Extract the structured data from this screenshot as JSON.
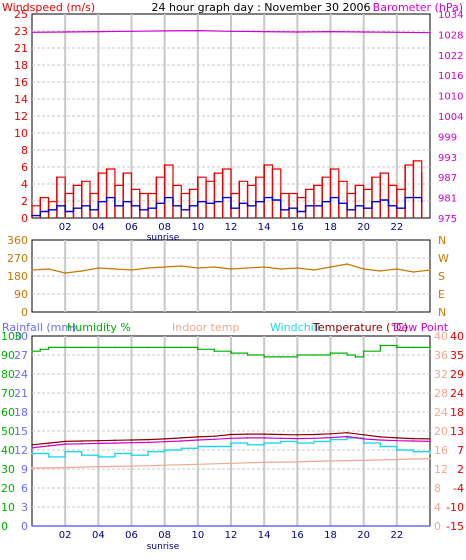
{
  "colors": {
    "windspeed": "#e80000",
    "gust": "#e80000",
    "wind_avg": "#0000c8",
    "barometer": "#d000d0",
    "direction": "#c87800",
    "rainfall": "#6a6aff",
    "humidity": "#00b000",
    "indoor": "#f0a890",
    "windchill": "#20d8e8",
    "temperature": "#8b0000",
    "dewpoint": "#d000d0",
    "left_temp_scale": "#f0a890",
    "grid": "#c8c8c8",
    "axis": "#000000"
  },
  "chart_data": [
    {
      "type": "line",
      "panel": "wind-barometer",
      "title": "24 hour graph day : November 30 2006",
      "left_axis_label": "Windspeed (m/s)",
      "right_axis_label": "Barometer (hPa)",
      "left_ticks": [
        "25",
        "23",
        "21",
        "18",
        "16",
        "14",
        "12",
        "10",
        "8",
        "6",
        "4",
        "2",
        "0"
      ],
      "left_range": [
        0,
        25
      ],
      "right_ticks": [
        "1034",
        "1028",
        "1022",
        "1016",
        "1010",
        "1004",
        "999",
        "993",
        "987",
        "981",
        "975"
      ],
      "right_range": [
        975,
        1034
      ],
      "x_ticks": [
        "02",
        "04",
        "06",
        "08",
        "10",
        "12",
        "14",
        "16",
        "18",
        "20",
        "22"
      ],
      "x_range_hours": [
        0,
        24
      ],
      "sunrise_label": "sunrise",
      "sunrise_hour": 7.9,
      "grid": true,
      "series": [
        {
          "key": "gust",
          "x": [
            0,
            0.5,
            1,
            1.5,
            2,
            2.5,
            3,
            3.5,
            4,
            4.5,
            5,
            5.5,
            6,
            6.5,
            7,
            7.5,
            8,
            8.5,
            9,
            9.5,
            10,
            10.5,
            11,
            11.5,
            12,
            12.5,
            13,
            13.5,
            14,
            14.5,
            15,
            15.5,
            16,
            16.5,
            17,
            17.5,
            18,
            18.5,
            19,
            19.5,
            20,
            20.5,
            21,
            21.5,
            22,
            22.5,
            23,
            23.5
          ],
          "y": [
            1.5,
            2.5,
            2.0,
            5.0,
            3.0,
            4.0,
            4.5,
            3.0,
            5.5,
            6.0,
            4.0,
            5.5,
            3.5,
            3.0,
            3.0,
            5.0,
            6.5,
            4.0,
            3.0,
            3.5,
            5.0,
            4.5,
            5.5,
            6.0,
            3.0,
            4.5,
            4.0,
            5.0,
            6.5,
            6.0,
            3.0,
            3.0,
            2.5,
            3.5,
            4.0,
            5.0,
            6.0,
            4.5,
            3.0,
            4.0,
            3.5,
            5.0,
            5.5,
            4.0,
            3.5,
            6.5,
            7.0,
            5.5
          ]
        },
        {
          "key": "wind_avg",
          "x": [
            0,
            0.5,
            1,
            1.5,
            2,
            2.5,
            3,
            3.5,
            4,
            4.5,
            5,
            5.5,
            6,
            6.5,
            7,
            7.5,
            8,
            8.5,
            9,
            9.5,
            10,
            10.5,
            11,
            11.5,
            12,
            12.5,
            13,
            13.5,
            14,
            14.5,
            15,
            15.5,
            16,
            16.5,
            17,
            17.5,
            18,
            18.5,
            19,
            19.5,
            20,
            20.5,
            21,
            21.5,
            22,
            22.5,
            23,
            23.5
          ],
          "y": [
            0.3,
            0.8,
            1.0,
            1.5,
            0.8,
            1.2,
            1.5,
            1.0,
            2.0,
            2.5,
            1.5,
            2.0,
            1.5,
            1.0,
            1.2,
            1.8,
            2.5,
            1.5,
            1.0,
            1.5,
            2.0,
            1.8,
            2.0,
            2.5,
            1.2,
            1.8,
            1.5,
            2.0,
            2.5,
            2.2,
            1.0,
            1.2,
            0.8,
            1.5,
            1.5,
            2.0,
            2.5,
            1.8,
            1.0,
            1.5,
            1.2,
            2.0,
            2.2,
            1.5,
            1.2,
            2.5,
            2.5,
            2.0
          ]
        },
        {
          "key": "barometer",
          "x": [
            0,
            2,
            4,
            6,
            8,
            10,
            12,
            14,
            16,
            18,
            20,
            22,
            24
          ],
          "y": [
            1028.7,
            1028.8,
            1028.9,
            1029.0,
            1029.1,
            1029.2,
            1029.0,
            1028.9,
            1028.8,
            1028.9,
            1028.8,
            1028.7,
            1028.6
          ]
        }
      ]
    },
    {
      "type": "line",
      "panel": "wind-direction",
      "left_ticks": [
        "360",
        "270",
        "180",
        "90",
        "0"
      ],
      "left_range": [
        0,
        360
      ],
      "right_ticks": [
        "N",
        "W",
        "S",
        "E",
        "N"
      ],
      "x_range_hours": [
        0,
        24
      ],
      "grid": true,
      "series": [
        {
          "key": "direction",
          "x": [
            0,
            1,
            2,
            3,
            4,
            5,
            6,
            7,
            8,
            9,
            10,
            11,
            12,
            13,
            14,
            15,
            16,
            17,
            18,
            19,
            20,
            21,
            22,
            23,
            24
          ],
          "y": [
            210,
            215,
            195,
            205,
            220,
            215,
            210,
            220,
            225,
            230,
            220,
            225,
            215,
            220,
            225,
            215,
            220,
            210,
            225,
            240,
            215,
            205,
            215,
            200,
            210
          ]
        }
      ]
    },
    {
      "type": "line",
      "panel": "temperature-humidity",
      "legend": [
        "Rainfall (mm)",
        "Humidity %",
        "Indoor temp",
        "Windchill",
        "Temperature (°C)",
        "Dew Point"
      ],
      "left_outer_ticks": [
        "100",
        "90",
        "80",
        "70",
        "60",
        "50",
        "40",
        "30",
        "20",
        "10",
        "0"
      ],
      "left_inner_ticks": [
        "30",
        "27",
        "24",
        "21",
        "18",
        "15",
        "12",
        "9",
        "6",
        "3",
        "0"
      ],
      "left_ranges": {
        "humidity": [
          0,
          100
        ],
        "rainfall": [
          0,
          30
        ]
      },
      "right_inner_ticks": [
        "40",
        "36",
        "32",
        "28",
        "24",
        "20",
        "16",
        "12",
        "8",
        "4",
        "0"
      ],
      "right_outer_ticks": [
        "40",
        "35",
        "29",
        "24",
        "18",
        "13",
        "7",
        "2",
        "-4",
        "-10",
        "-15"
      ],
      "right_ranges": {
        "indoor": [
          0,
          40
        ],
        "temperature": [
          -15,
          40
        ]
      },
      "x_ticks": [
        "02",
        "04",
        "06",
        "08",
        "10",
        "12",
        "14",
        "16",
        "18",
        "20",
        "22"
      ],
      "x_range_hours": [
        0,
        24
      ],
      "sunrise_label": "sunrise",
      "sunrise_hour": 7.9,
      "grid": true,
      "series": [
        {
          "key": "humidity",
          "x": [
            0,
            0.5,
            1,
            3,
            5,
            7,
            9,
            10,
            11,
            12,
            13,
            14,
            15,
            16,
            17,
            18,
            19,
            19.5,
            20,
            21,
            22,
            23,
            24
          ],
          "y": [
            92,
            93,
            94,
            94,
            94,
            94,
            94,
            93,
            92,
            91,
            90,
            89,
            89,
            90,
            90,
            91,
            90,
            89,
            92,
            95,
            94,
            94,
            93
          ]
        },
        {
          "key": "rainfall",
          "x": [
            0,
            24
          ],
          "y": [
            0,
            0
          ]
        },
        {
          "key": "indoor",
          "x": [
            0,
            2,
            4,
            6,
            8,
            10,
            12,
            14,
            16,
            18,
            20,
            22,
            24
          ],
          "y": [
            12.2,
            12.3,
            12.5,
            12.6,
            12.8,
            13.0,
            13.2,
            13.4,
            13.5,
            13.7,
            13.8,
            14.0,
            14.2
          ]
        },
        {
          "key": "windchill",
          "x": [
            0,
            1,
            2,
            3,
            4,
            5,
            6,
            7,
            8,
            9,
            10,
            11,
            12,
            13,
            14,
            15,
            16,
            17,
            18,
            19,
            20,
            21,
            22,
            23,
            24
          ],
          "y": [
            6.0,
            5.0,
            6.5,
            5.5,
            5.0,
            6.0,
            5.5,
            6.5,
            7.0,
            7.5,
            8.0,
            8.0,
            9.0,
            8.5,
            9.0,
            9.5,
            9.0,
            9.5,
            10.0,
            10.5,
            9.0,
            8.0,
            7.0,
            6.5,
            6.0
          ]
        },
        {
          "key": "temperature",
          "x": [
            0,
            1,
            2,
            3,
            4,
            5,
            6,
            7,
            8,
            9,
            10,
            11,
            12,
            13,
            14,
            15,
            16,
            17,
            18,
            19,
            20,
            21,
            22,
            23,
            24
          ],
          "y": [
            8.5,
            9.0,
            9.5,
            9.6,
            9.7,
            9.8,
            9.9,
            10.0,
            10.2,
            10.5,
            10.8,
            11.0,
            11.5,
            11.6,
            11.6,
            11.5,
            11.4,
            11.5,
            11.7,
            12.0,
            11.4,
            10.8,
            10.5,
            10.3,
            10.2
          ]
        },
        {
          "key": "dewpoint",
          "x": [
            0,
            1,
            2,
            3,
            4,
            5,
            6,
            7,
            8,
            9,
            10,
            11,
            12,
            13,
            14,
            15,
            16,
            17,
            18,
            19,
            20,
            21,
            22,
            23,
            24
          ],
          "y": [
            7.6,
            8.2,
            8.7,
            8.8,
            8.9,
            9.0,
            9.1,
            9.2,
            9.4,
            9.6,
            9.9,
            10.1,
            10.4,
            10.5,
            10.5,
            10.4,
            10.3,
            10.4,
            10.6,
            10.9,
            10.2,
            9.9,
            9.7,
            9.6,
            9.5
          ]
        }
      ]
    }
  ]
}
